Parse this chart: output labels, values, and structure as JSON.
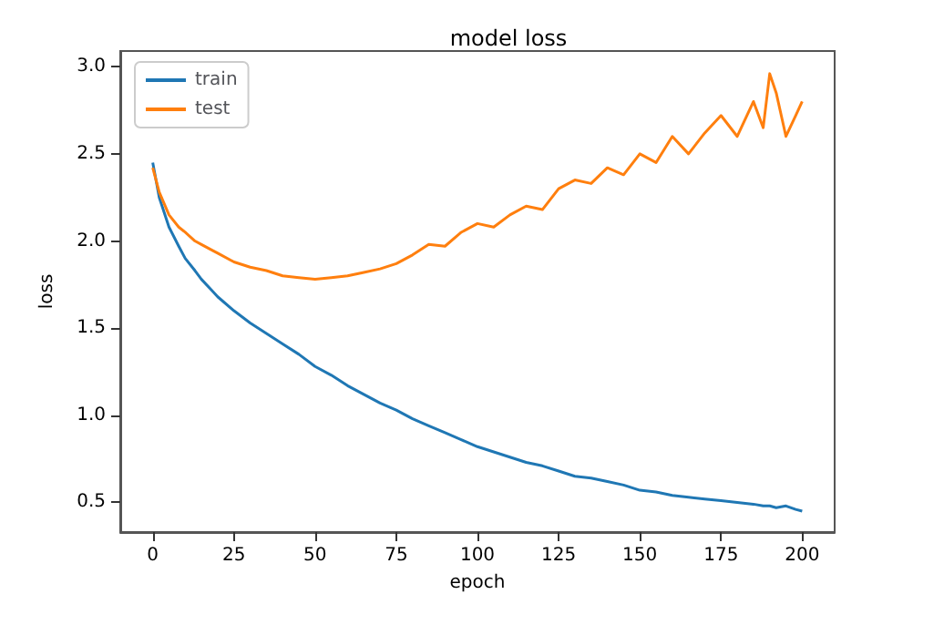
{
  "chart_data": {
    "type": "line",
    "title": "model loss",
    "xlabel": "epoch",
    "ylabel": "loss",
    "x": [
      0,
      2,
      5,
      8,
      10,
      13,
      15,
      18,
      20,
      25,
      30,
      35,
      40,
      45,
      50,
      55,
      60,
      65,
      70,
      75,
      80,
      85,
      90,
      95,
      100,
      105,
      110,
      115,
      120,
      125,
      130,
      135,
      140,
      145,
      150,
      155,
      160,
      165,
      170,
      175,
      180,
      185,
      188,
      190,
      192,
      195,
      198,
      200
    ],
    "series": [
      {
        "name": "train",
        "color": "#1f77b4",
        "values": [
          2.45,
          2.25,
          2.08,
          1.97,
          1.9,
          1.83,
          1.78,
          1.72,
          1.68,
          1.6,
          1.53,
          1.47,
          1.41,
          1.35,
          1.28,
          1.23,
          1.17,
          1.12,
          1.07,
          1.03,
          0.98,
          0.94,
          0.9,
          0.86,
          0.82,
          0.79,
          0.76,
          0.73,
          0.71,
          0.68,
          0.65,
          0.64,
          0.62,
          0.6,
          0.57,
          0.56,
          0.54,
          0.53,
          0.52,
          0.51,
          0.5,
          0.49,
          0.48,
          0.48,
          0.47,
          0.48,
          0.46,
          0.45
        ]
      },
      {
        "name": "test",
        "color": "#ff7f0e",
        "values": [
          2.42,
          2.28,
          2.15,
          2.08,
          2.05,
          2.0,
          1.98,
          1.95,
          1.93,
          1.88,
          1.85,
          1.83,
          1.8,
          1.79,
          1.78,
          1.79,
          1.8,
          1.82,
          1.84,
          1.87,
          1.92,
          1.98,
          1.97,
          2.05,
          2.1,
          2.08,
          2.15,
          2.2,
          2.18,
          2.3,
          2.35,
          2.33,
          2.42,
          2.38,
          2.5,
          2.45,
          2.6,
          2.5,
          2.62,
          2.72,
          2.6,
          2.8,
          2.65,
          2.96,
          2.85,
          2.6,
          2.72,
          2.8
        ]
      }
    ],
    "xlim": [
      -10,
      210
    ],
    "xticks": [
      0,
      25,
      50,
      75,
      100,
      125,
      150,
      175,
      200
    ],
    "ylim": [
      0.33,
      3.09
    ],
    "yticks": [
      0.5,
      {
        "value": 1,
        "label": "1.0"
      },
      1.5,
      {
        "value": 2,
        "label": "2.0"
      },
      2.5,
      {
        "value": 3,
        "label": "3.0"
      }
    ],
    "legend": "top left",
    "grid": false,
    "marker": "none",
    "line_style": "solid"
  }
}
